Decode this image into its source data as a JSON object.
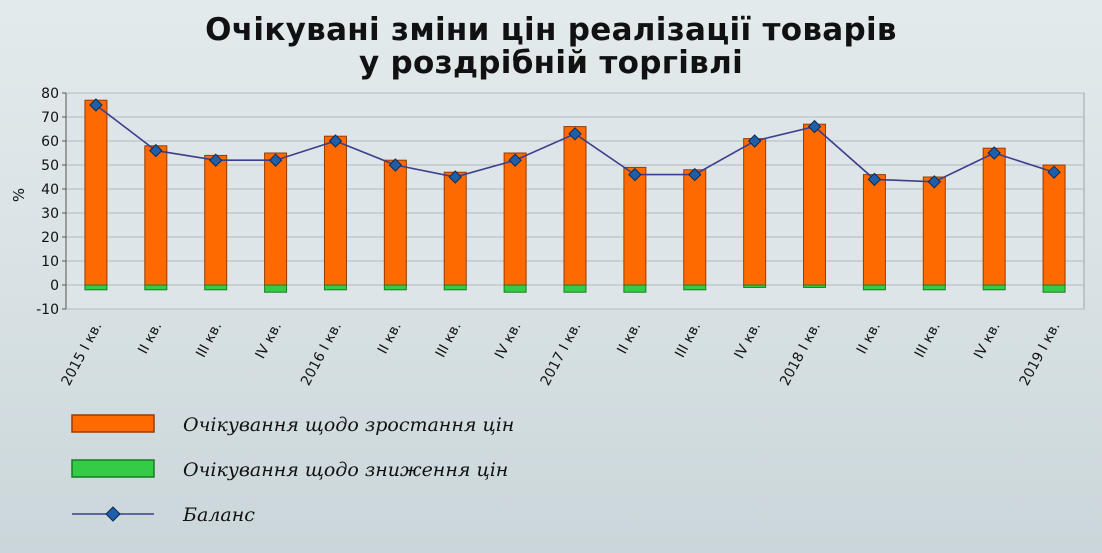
{
  "chart_data": {
    "type": "bar",
    "title_line1": "Очікувані зміни цін реалізації товарів",
    "title_line2": "у роздрібній торгівлі",
    "ylabel": "%",
    "ylim": [
      -10,
      80
    ],
    "yticks": [
      -10,
      0,
      10,
      20,
      30,
      40,
      50,
      60,
      70,
      80
    ],
    "grid": true,
    "legend_position": "bottom-left",
    "categories": [
      "2015 I кв.",
      "II кв.",
      "III кв.",
      "IV кв.",
      "2016 I кв.",
      "II кв.",
      "III кв.",
      "IV кв.",
      "2017 I кв.",
      "II кв.",
      "III кв.",
      "IV кв.",
      "2018 I кв.",
      "II кв.",
      "III кв.",
      "IV кв.",
      "2019 I кв."
    ],
    "series": [
      {
        "name": "Очікування щодо зростання цін",
        "kind": "bar",
        "color": "#ff6a00",
        "values": [
          77,
          58,
          54,
          55,
          62,
          52,
          47,
          55,
          66,
          49,
          48,
          61,
          67,
          46,
          45,
          57,
          50
        ]
      },
      {
        "name": "Очікування щодо зниження цін",
        "kind": "bar",
        "color": "#33cc44",
        "values": [
          -2,
          -2,
          -2,
          -3,
          -2,
          -2,
          -2,
          -3,
          -3,
          -3,
          -2,
          -1,
          -1,
          -2,
          -2,
          -2,
          -3
        ]
      },
      {
        "name": "Баланс",
        "kind": "line",
        "color": "#3b3f8c",
        "marker_color": "#1f5fa8",
        "values": [
          75,
          56,
          52,
          52,
          60,
          50,
          45,
          52,
          63,
          46,
          46,
          60,
          66,
          44,
          43,
          55,
          47
        ]
      }
    ]
  }
}
